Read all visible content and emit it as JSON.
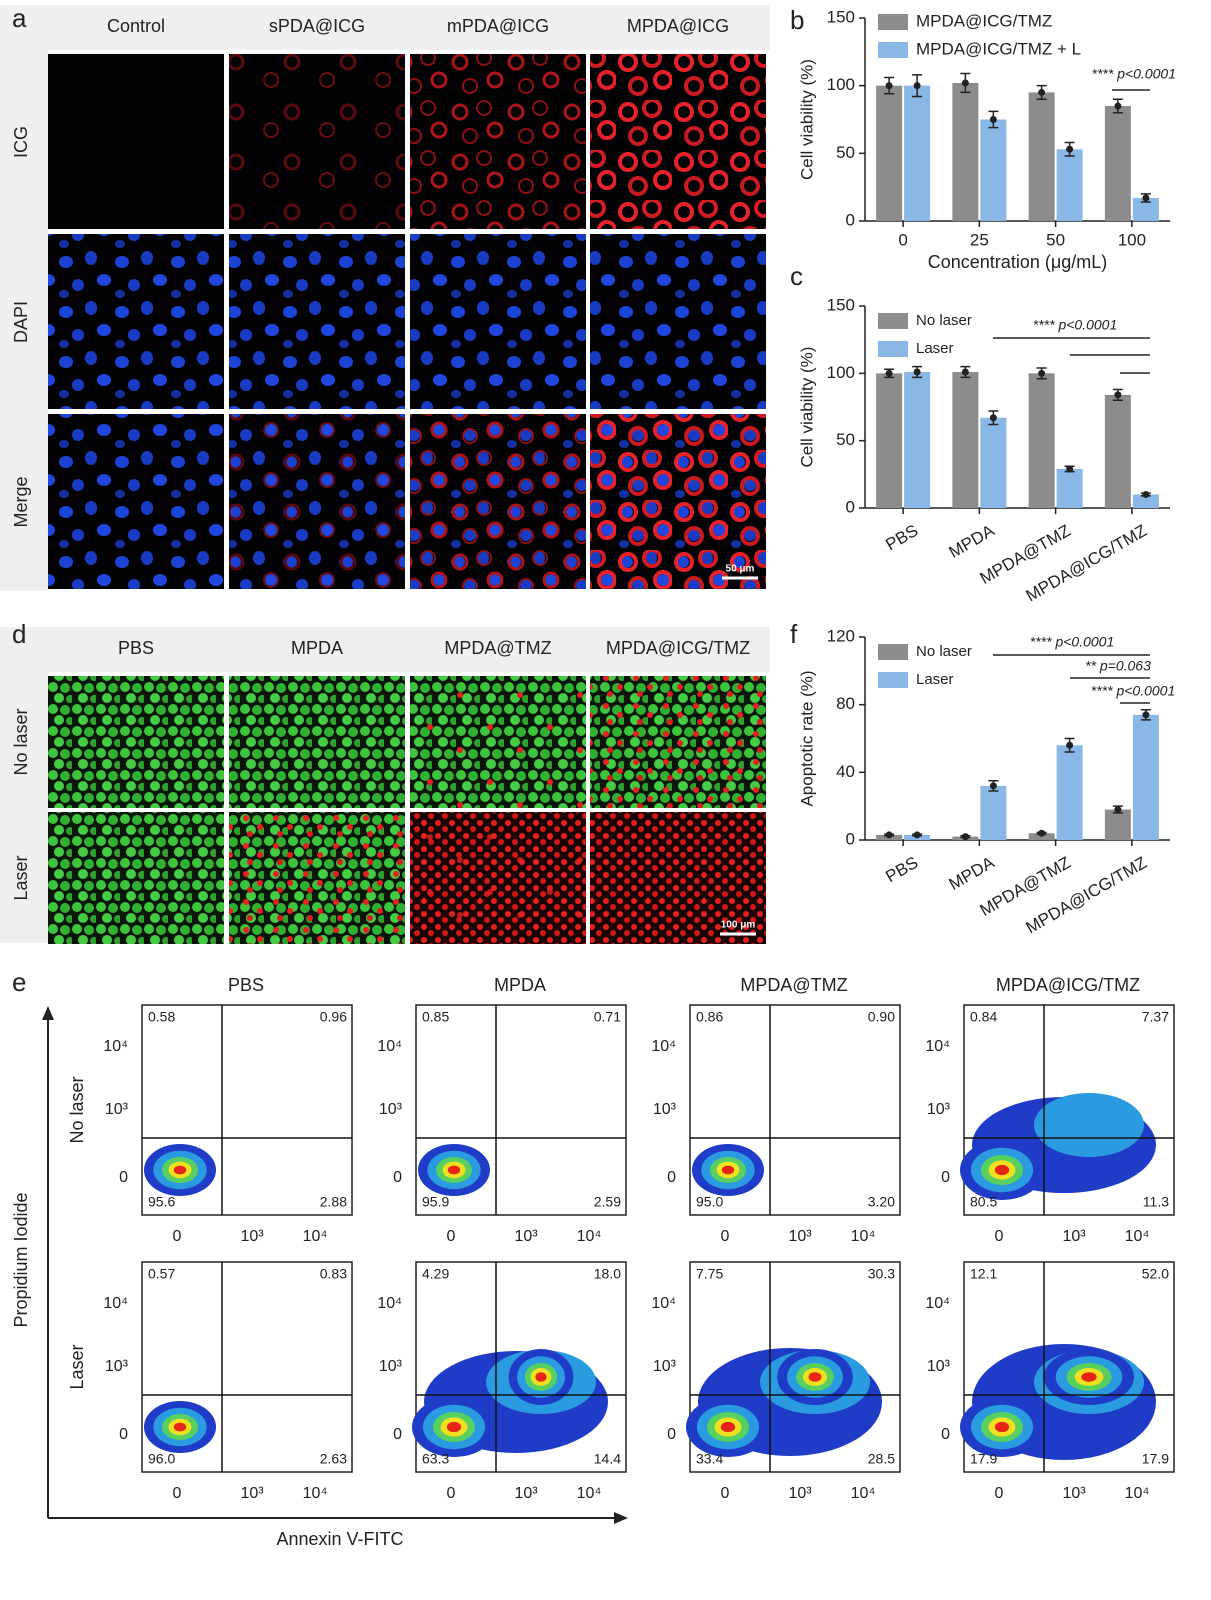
{
  "panel_labels": [
    "a",
    "b",
    "c",
    "d",
    "e",
    "f"
  ],
  "panel_a": {
    "columns": [
      "Control",
      "sPDA@ICG",
      "mPDA@ICG",
      "MPDA@ICG"
    ],
    "rows": [
      "ICG",
      "DAPI",
      "Merge"
    ],
    "scale_bar": "50 μm"
  },
  "panel_d": {
    "columns": [
      "PBS",
      "MPDA",
      "MPDA@TMZ",
      "MPDA@ICG/TMZ"
    ],
    "rows": [
      "No laser",
      "Laser"
    ],
    "scale_bar": "100 μm"
  },
  "chart_data": [
    {
      "type": "bar",
      "x_label": "Concentration (μg/mL)",
      "y_label": "Cell viability (%)",
      "categories": [
        "0",
        "25",
        "50",
        "100"
      ],
      "ylim": [
        0,
        150
      ],
      "yticks": [
        0,
        50,
        100,
        150
      ],
      "legend": "upper left",
      "series": [
        {
          "name": "MPDA@ICG/TMZ",
          "color": "#8c8c8c",
          "values": [
            100,
            102,
            95,
            85
          ],
          "errors": [
            6,
            7,
            5,
            5
          ]
        },
        {
          "name": "MPDA@ICG/TMZ + L",
          "color": "#8ab8e6",
          "values": [
            100,
            75,
            53,
            17
          ],
          "errors": [
            8,
            6,
            5,
            3
          ]
        }
      ],
      "annotations": [
        "**** p<0.0001"
      ]
    },
    {
      "type": "bar",
      "y_label": "Cell viability (%)",
      "categories": [
        "PBS",
        "MPDA",
        "MPDA@TMZ",
        "MPDA@ICG/TMZ"
      ],
      "ylim": [
        0,
        150
      ],
      "yticks": [
        0,
        50,
        100,
        150
      ],
      "legend": "upper left",
      "series": [
        {
          "name": "No laser",
          "color": "#8c8c8c",
          "values": [
            100,
            101,
            100,
            84
          ],
          "errors": [
            3,
            4,
            4,
            4
          ]
        },
        {
          "name": "Laser",
          "color": "#8ab8e6",
          "values": [
            101,
            67,
            29,
            10
          ],
          "errors": [
            4,
            5,
            2,
            1
          ]
        }
      ],
      "annotations": [
        "**** p<0.0001"
      ]
    },
    {
      "type": "bar",
      "y_label": "Apoptotic rate (%)",
      "categories": [
        "PBS",
        "MPDA",
        "MPDA@TMZ",
        "MPDA@ICG/TMZ"
      ],
      "ylim": [
        0,
        120
      ],
      "yticks": [
        0,
        40,
        80,
        120
      ],
      "legend": "upper left",
      "series": [
        {
          "name": "No laser",
          "color": "#8c8c8c",
          "values": [
            3,
            2,
            4,
            18
          ],
          "errors": [
            0.5,
            0.5,
            0.5,
            2
          ]
        },
        {
          "name": "Laser",
          "color": "#8ab8e6",
          "values": [
            3,
            32,
            56,
            74
          ],
          "errors": [
            0.5,
            3,
            4,
            3
          ]
        }
      ],
      "annotations": [
        "**** p<0.0001",
        "** p=0.063",
        "**** p<0.0001"
      ]
    }
  ],
  "panel_e": {
    "columns": [
      "PBS",
      "MPDA",
      "MPDA@TMZ",
      "MPDA@ICG/TMZ"
    ],
    "rows": [
      "No laser",
      "Laser"
    ],
    "y_label": "Propidium Iodide",
    "x_label": "Annexin V-FITC",
    "x_tick_labels": [
      "0",
      "10³",
      "10⁴"
    ],
    "y_tick_labels": [
      "10⁴",
      "10³",
      "0"
    ],
    "plots": [
      [
        {
          "ul": "0.58",
          "ur": "0.96",
          "ll": "95.6",
          "lr": "2.88"
        },
        {
          "ul": "0.85",
          "ur": "0.71",
          "ll": "95.9",
          "lr": "2.59"
        },
        {
          "ul": "0.86",
          "ur": "0.90",
          "ll": "95.0",
          "lr": "3.20"
        },
        {
          "ul": "0.84",
          "ur": "7.37",
          "ll": "80.5",
          "lr": "11.3"
        }
      ],
      [
        {
          "ul": "0.57",
          "ur": "0.83",
          "ll": "96.0",
          "lr": "2.63"
        },
        {
          "ul": "4.29",
          "ur": "18.0",
          "ll": "63.3",
          "lr": "14.4"
        },
        {
          "ul": "7.75",
          "ur": "30.3",
          "ll": "33.4",
          "lr": "28.5"
        },
        {
          "ul": "12.1",
          "ur": "52.0",
          "ll": "17.9",
          "lr": "17.9"
        }
      ]
    ]
  }
}
